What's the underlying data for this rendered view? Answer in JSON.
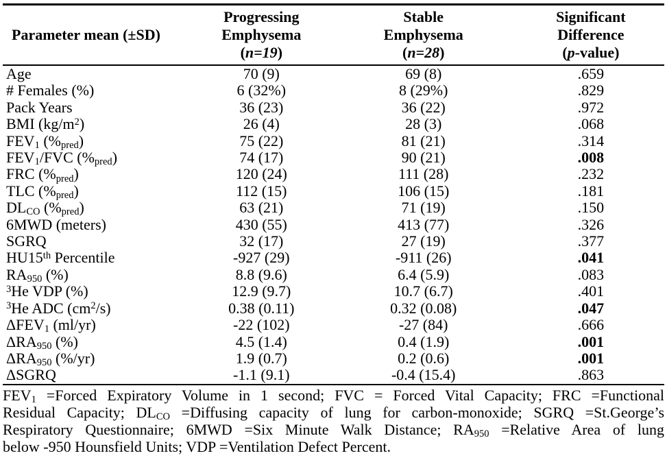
{
  "table": {
    "header": {
      "columns": [
        {
          "id": "parameter",
          "lines": [
            "Parameter mean (±SD)"
          ]
        },
        {
          "id": "progressing",
          "lines": [
            "Progressing",
            "Emphysema",
            "(~{n=19})"
          ]
        },
        {
          "id": "stable",
          "lines": [
            "Stable",
            "Emphysema",
            "(~{n=28})"
          ]
        },
        {
          "id": "p_value",
          "lines": [
            "Significant",
            "Difference",
            "(~{p}-value)"
          ]
        }
      ]
    },
    "rows": [
      {
        "parameter": "Age",
        "progressing": "70 (9)",
        "stable": "69 (8)",
        "p_value": ".659",
        "significant": false
      },
      {
        "parameter": "# Females (%)",
        "progressing": "6 (32%)",
        "stable": "8 (29%)",
        "p_value": ".829",
        "significant": false
      },
      {
        "parameter": "Pack Years",
        "progressing": "36 (23)",
        "stable": "36 (22)",
        "p_value": ".972",
        "significant": false
      },
      {
        "parameter": "BMI (kg/m^{2})",
        "progressing": "26 (4)",
        "stable": "28 (3)",
        "p_value": ".068",
        "significant": false
      },
      {
        "parameter": "FEV_{1} (%_{pred})",
        "progressing": "75 (22)",
        "stable": "81 (21)",
        "p_value": ".314",
        "significant": false
      },
      {
        "parameter": "FEV_{1}/FVC (%_{pred})",
        "progressing": "74 (17)",
        "stable": "90 (21)",
        "p_value": ".008",
        "significant": true
      },
      {
        "parameter": "FRC (%_{pred})",
        "progressing": "120 (24)",
        "stable": "111 (28)",
        "p_value": ".232",
        "significant": false
      },
      {
        "parameter": "TLC (%_{pred})",
        "progressing": "112 (15)",
        "stable": "106 (15)",
        "p_value": ".181",
        "significant": false
      },
      {
        "parameter": "DL_{CO} (%_{pred})",
        "progressing": "63 (21)",
        "stable": "71 (19)",
        "p_value": ".150",
        "significant": false
      },
      {
        "parameter": "6MWD (meters)",
        "progressing": "430 (55)",
        "stable": "413 (77)",
        "p_value": ".326",
        "significant": false
      },
      {
        "parameter": "SGRQ",
        "progressing": "32 (17)",
        "stable": "27 (19)",
        "p_value": ".377",
        "significant": false
      },
      {
        "parameter": "HU15^{th} Percentile",
        "progressing": "-927 (29)",
        "stable": "-911 (26)",
        "p_value": ".041",
        "significant": true
      },
      {
        "parameter": "RA_{950} (%)",
        "progressing": "8.8 (9.6)",
        "stable": "6.4 (5.9)",
        "p_value": ".083",
        "significant": false
      },
      {
        "parameter": "^{3}He VDP (%)",
        "progressing": "12.9 (9.7)",
        "stable": "10.7 (6.7)",
        "p_value": ".401",
        "significant": false
      },
      {
        "parameter": "^{3}He ADC (cm^{2}/s)",
        "progressing": "0.38 (0.11)",
        "stable": "0.32 (0.08)",
        "p_value": ".047",
        "significant": true
      },
      {
        "parameter": "ΔFEV_{1} (ml/yr)",
        "progressing": "-22 (102)",
        "stable": "-27 (84)",
        "p_value": ".666",
        "significant": false
      },
      {
        "parameter": "ΔRA_{950} (%)",
        "progressing": "4.5 (1.4)",
        "stable": "0.4 (1.9)",
        "p_value": ".001",
        "significant": true
      },
      {
        "parameter": "ΔRA_{950} (%/yr)",
        "progressing": "1.9 (0.7)",
        "stable": "0.2 (0.6)",
        "p_value": ".001",
        "significant": true
      },
      {
        "parameter": "ΔSGRQ",
        "progressing": "-1.1 (9.1)",
        "stable": "-0.4 (15.4)",
        "p_value": ".863",
        "significant": false
      }
    ]
  },
  "footnote": {
    "lines": [
      "FEV_{1} =Forced Expiratory Volume in 1 second; FVC = Forced Vital Capacity; FRC =Functional",
      "Residual Capacity; DL_{CO} =Diffusing capacity of lung for carbon-monoxide; SGRQ =St.George’s",
      "Respiratory Questionnaire; 6MWD =Six Minute Walk Distance; RA_{950} =Relative Area of lung",
      "below -950 Hounsfield Units; VDP =Ventilation Defect Percent."
    ]
  },
  "colors": {
    "text": "#000000",
    "background": "#ffffff",
    "rule": "#000000"
  }
}
